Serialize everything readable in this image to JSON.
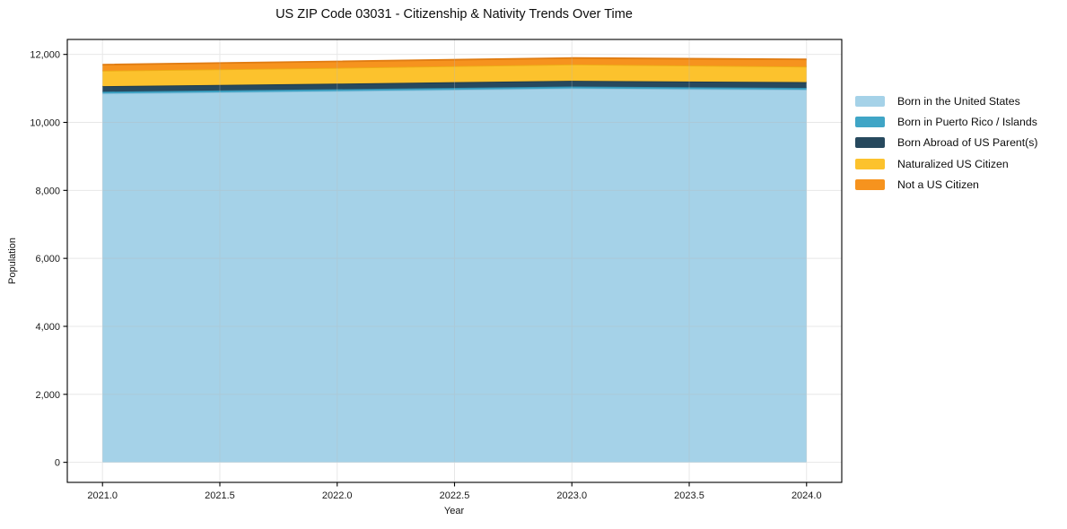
{
  "page": {
    "background": "#ffffff",
    "text_color": "#1a1a1a",
    "spine_color": "#000000",
    "grid_color": "#b8b8b8"
  },
  "chart_data": {
    "type": "area",
    "stacked": true,
    "title": "US ZIP Code 03031 - Citizenship & Nativity Trends Over Time",
    "xlabel": "Year",
    "ylabel": "Population",
    "x": [
      2021,
      2022,
      2023,
      2024
    ],
    "series": [
      {
        "name": "Born in the United States",
        "color": "#a5d2e8",
        "edge_color": "#8cc1dc",
        "values": [
          10850,
          10920,
          11000,
          10960
        ]
      },
      {
        "name": "Born in Puerto Rico / Islands",
        "color": "#3fa5c6",
        "edge_color": "#328faf",
        "values": [
          55,
          55,
          55,
          55
        ]
      },
      {
        "name": "Born Abroad of US Parent(s)",
        "color": "#27495e",
        "edge_color": "#1e3a4b",
        "values": [
          160,
          165,
          170,
          170
        ]
      },
      {
        "name": "Naturalized US Citizen",
        "color": "#fcc22d",
        "edge_color": "#edad15",
        "values": [
          455,
          465,
          480,
          455
        ]
      },
      {
        "name": "Not a US Citizen",
        "color": "#f6931e",
        "edge_color": "#e07c12",
        "values": [
          180,
          190,
          190,
          215
        ]
      }
    ],
    "totals": [
      11700,
      11795,
      11895,
      11855
    ],
    "xlim": [
      2020.85,
      2024.15
    ],
    "ylim": [
      -590,
      12440
    ],
    "xticks": {
      "values": [
        2021.0,
        2021.5,
        2022.0,
        2022.5,
        2023.0,
        2023.5,
        2024.0
      ],
      "labels": [
        "2021.0",
        "2021.5",
        "2022.0",
        "2022.5",
        "2023.0",
        "2023.5",
        "2024.0"
      ]
    },
    "yticks": {
      "values": [
        0,
        2000,
        4000,
        6000,
        8000,
        10000,
        12000
      ],
      "labels": [
        "0",
        "2,000",
        "4,000",
        "6,000",
        "8,000",
        "10,000",
        "12,000"
      ]
    },
    "grid": true,
    "legend_position": "right of plot, frameless"
  }
}
